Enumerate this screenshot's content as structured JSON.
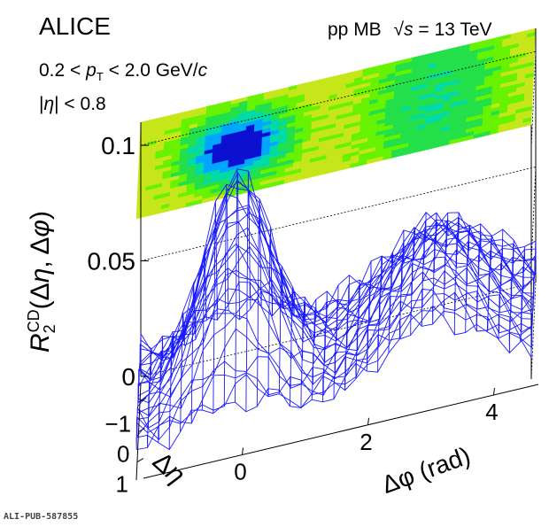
{
  "header": {
    "experiment": "ALICE",
    "collision": "pp MB",
    "sqrt_s_symbol": "√s",
    "energy_text": "= 13 TeV",
    "pt_range_text": "0.2 < pT < 2.0 GeV/c",
    "eta_range_text": "|η| < 0.8"
  },
  "footer": {
    "pub_id": "ALI-PUB-587855"
  },
  "chart_data": {
    "type": "surface",
    "title": "",
    "xlabel": "Δφ (rad)",
    "ylabel": "Δη",
    "zlabel": "R2CD(Δη, Δφ)",
    "x_ticks": [
      "0",
      "2",
      "4"
    ],
    "y_ticks": [
      "−1",
      "0",
      "1"
    ],
    "z_ticks": [
      "0",
      "0.05",
      "0.1"
    ],
    "xlim": [
      -1.571,
      4.712
    ],
    "ylim": [
      -1.6,
      1.6
    ],
    "zlim": [
      0,
      0.11
    ],
    "grid": false,
    "projection": "contour on top",
    "mesh_color": "#1a1aff",
    "contour_palette": [
      "#0a0fd0",
      "#00a6ff",
      "#00d9a8",
      "#23e04a",
      "#66f200",
      "#c6e619"
    ],
    "samples_dphi": [
      {
        "dphi": -1.571,
        "r2_at_deta0": 0.018
      },
      {
        "dphi": -0.8,
        "r2_at_deta0": 0.045
      },
      {
        "dphi": 0.0,
        "r2_at_deta0": 0.098
      },
      {
        "dphi": 0.8,
        "r2_at_deta0": 0.045
      },
      {
        "dphi": 1.571,
        "r2_at_deta0": 0.012
      },
      {
        "dphi": 2.4,
        "r2_at_deta0": 0.032
      },
      {
        "dphi": 3.14,
        "r2_at_deta0": 0.045
      },
      {
        "dphi": 3.9,
        "r2_at_deta0": 0.032
      },
      {
        "dphi": 4.712,
        "r2_at_deta0": 0.012
      }
    ],
    "samples_deta": [
      {
        "deta": -1.6,
        "r2_at_dphi0": 0.02
      },
      {
        "deta": -0.8,
        "r2_at_dphi0": 0.058
      },
      {
        "deta": 0.0,
        "r2_at_dphi0": 0.098
      },
      {
        "deta": 0.8,
        "r2_at_dphi0": 0.058
      },
      {
        "deta": 1.6,
        "r2_at_dphi0": 0.02
      }
    ]
  }
}
